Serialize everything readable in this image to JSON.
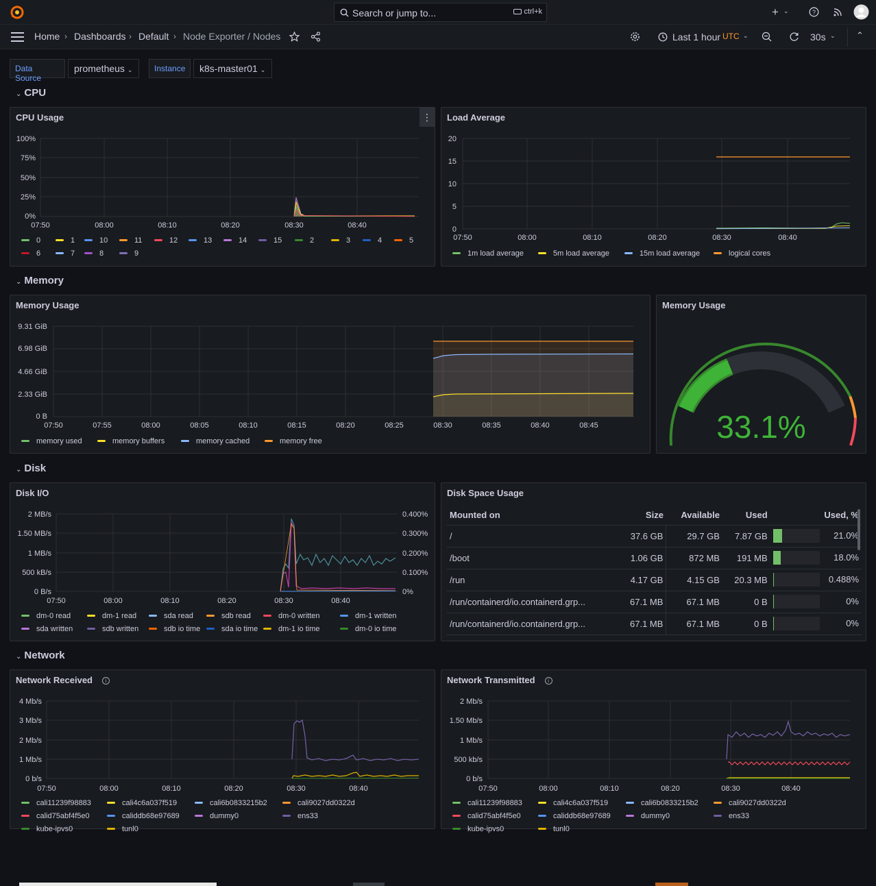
{
  "header": {
    "search_placeholder": "Search or jump to...",
    "search_shortcut": "ctrl+k"
  },
  "breadcrumb": {
    "home": "Home",
    "dashboards": "Dashboards",
    "folder": "Default",
    "current": "Node Exporter / Nodes"
  },
  "toolbar": {
    "time_range": "Last 1 hour",
    "timezone": "UTC",
    "refresh": "30s"
  },
  "variables": {
    "datasource_label": "Data Source",
    "datasource_value": "prometheus",
    "instance_label": "Instance",
    "instance_value": "k8s-master01"
  },
  "rows": {
    "cpu": "CPU",
    "memory": "Memory",
    "disk": "Disk",
    "network": "Network"
  },
  "panels": {
    "cpu_usage": {
      "title": "CPU Usage",
      "y_ticks": [
        "100%",
        "75%",
        "50%",
        "25%",
        "0%"
      ],
      "x_ticks": [
        "07:50",
        "08:00",
        "08:10",
        "08:20",
        "08:30",
        "08:40"
      ],
      "legend": [
        {
          "name": "0",
          "color": "#73bf69"
        },
        {
          "name": "1",
          "color": "#fade2a"
        },
        {
          "name": "10",
          "color": "#5794f2"
        },
        {
          "name": "11",
          "color": "#ff9830"
        },
        {
          "name": "12",
          "color": "#f2495c"
        },
        {
          "name": "13",
          "color": "#5794f2"
        },
        {
          "name": "14",
          "color": "#b877d9"
        },
        {
          "name": "15",
          "color": "#705da0"
        },
        {
          "name": "2",
          "color": "#37872d"
        },
        {
          "name": "3",
          "color": "#e0b400"
        },
        {
          "name": "4",
          "color": "#1f60c4"
        },
        {
          "name": "5",
          "color": "#fa6400"
        },
        {
          "name": "6",
          "color": "#c4162a"
        },
        {
          "name": "7",
          "color": "#8ab8ff"
        },
        {
          "name": "8",
          "color": "#a352cc"
        },
        {
          "name": "9",
          "color": "#806eb7"
        }
      ]
    },
    "load_average": {
      "title": "Load Average",
      "y_ticks": [
        "20",
        "15",
        "10",
        "5",
        "0"
      ],
      "x_ticks": [
        "07:50",
        "08:00",
        "08:10",
        "08:20",
        "08:30",
        "08:40"
      ],
      "legend": [
        {
          "name": "1m load average",
          "color": "#73bf69"
        },
        {
          "name": "5m load average",
          "color": "#fade2a"
        },
        {
          "name": "15m load average",
          "color": "#8ab8ff"
        },
        {
          "name": "logical cores",
          "color": "#ff9830"
        }
      ]
    },
    "memory_usage": {
      "title": "Memory Usage",
      "y_ticks": [
        "9.31 GiB",
        "6.98 GiB",
        "4.66 GiB",
        "2.33 GiB",
        "0 B"
      ],
      "x_ticks": [
        "07:50",
        "07:55",
        "08:00",
        "08:05",
        "08:10",
        "08:15",
        "08:20",
        "08:25",
        "08:30",
        "08:35",
        "08:40",
        "08:45"
      ],
      "legend": [
        {
          "name": "memory used",
          "color": "#73bf69"
        },
        {
          "name": "memory buffers",
          "color": "#fade2a"
        },
        {
          "name": "memory cached",
          "color": "#8ab8ff"
        },
        {
          "name": "memory free",
          "color": "#ff9830"
        }
      ]
    },
    "memory_gauge": {
      "title": "Memory Usage",
      "value": "33.1%",
      "fraction": 0.331
    },
    "disk_io": {
      "title": "Disk I/O",
      "y_ticks": [
        "2 MB/s",
        "1.50 MB/s",
        "1 MB/s",
        "500 kB/s",
        "0 B/s"
      ],
      "y2_ticks": [
        "0.400%",
        "0.300%",
        "0.200%",
        "0.100%",
        "0%"
      ],
      "x_ticks": [
        "07:50",
        "08:00",
        "08:10",
        "08:20",
        "08:30",
        "08:40"
      ],
      "legend": [
        {
          "name": "dm-0 read",
          "color": "#73bf69"
        },
        {
          "name": "dm-1 read",
          "color": "#fade2a"
        },
        {
          "name": "sda read",
          "color": "#8ab8ff"
        },
        {
          "name": "sdb read",
          "color": "#ff9830"
        },
        {
          "name": "dm-0 written",
          "color": "#f2495c"
        },
        {
          "name": "dm-1 written",
          "color": "#5794f2"
        },
        {
          "name": "sda written",
          "color": "#b877d9"
        },
        {
          "name": "sdb written",
          "color": "#705da0"
        },
        {
          "name": "sdb io time",
          "color": "#fa6400"
        },
        {
          "name": "sda io time",
          "color": "#1f60c4"
        },
        {
          "name": "dm-1 io time",
          "color": "#e0b400"
        },
        {
          "name": "dm-0 io time",
          "color": "#37872d"
        }
      ]
    },
    "disk_space": {
      "title": "Disk Space Usage",
      "columns": [
        "Mounted on",
        "Size",
        "Available",
        "Used",
        "Used, %"
      ],
      "rows": [
        {
          "mount": "/",
          "size": "37.6 GB",
          "available": "29.7 GB",
          "used": "7.87 GB",
          "pct": "21.0%",
          "frac": 0.21
        },
        {
          "mount": "/boot",
          "size": "1.06 GB",
          "available": "872 MB",
          "used": "191 MB",
          "pct": "18.0%",
          "frac": 0.18
        },
        {
          "mount": "/run",
          "size": "4.17 GB",
          "available": "4.15 GB",
          "used": "20.3 MB",
          "pct": "0.488%",
          "frac": 0.00488
        },
        {
          "mount": "/run/containerd/io.containerd.grp...",
          "size": "67.1 MB",
          "available": "67.1 MB",
          "used": "0 B",
          "pct": "0%",
          "frac": 0
        },
        {
          "mount": "/run/containerd/io.containerd.grp...",
          "size": "67.1 MB",
          "available": "67.1 MB",
          "used": "0 B",
          "pct": "0%",
          "frac": 0
        }
      ]
    },
    "net_rx": {
      "title": "Network Received",
      "y_ticks": [
        "4 Mb/s",
        "3 Mb/s",
        "2 Mb/s",
        "1 Mb/s",
        "0 b/s"
      ],
      "x_ticks": [
        "07:50",
        "08:00",
        "08:10",
        "08:20",
        "08:30",
        "08:40"
      ],
      "legend": [
        {
          "name": "cali11239f98883",
          "color": "#73bf69"
        },
        {
          "name": "cali4c6a037f519",
          "color": "#fade2a"
        },
        {
          "name": "cali6b0833215b2",
          "color": "#8ab8ff"
        },
        {
          "name": "cali9027dd0322d",
          "color": "#ff9830"
        },
        {
          "name": "calid75abf4f5e0",
          "color": "#f2495c"
        },
        {
          "name": "caliddb68e97689",
          "color": "#5794f2"
        },
        {
          "name": "dummy0",
          "color": "#b877d9"
        },
        {
          "name": "ens33",
          "color": "#705da0"
        },
        {
          "name": "kube-ipvs0",
          "color": "#37872d"
        },
        {
          "name": "tunl0",
          "color": "#e0b400"
        }
      ]
    },
    "net_tx": {
      "title": "Network Transmitted",
      "y_ticks": [
        "2 Mb/s",
        "1.50 Mb/s",
        "1 Mb/s",
        "500 kb/s",
        "0 b/s"
      ],
      "x_ticks": [
        "07:50",
        "08:00",
        "08:10",
        "08:20",
        "08:30",
        "08:40"
      ],
      "legend": [
        {
          "name": "cali11239f98883",
          "color": "#73bf69"
        },
        {
          "name": "cali4c6a037f519",
          "color": "#fade2a"
        },
        {
          "name": "cali6b0833215b2",
          "color": "#8ab8ff"
        },
        {
          "name": "cali9027dd0322d",
          "color": "#ff9830"
        },
        {
          "name": "calid75abf4f5e0",
          "color": "#f2495c"
        },
        {
          "name": "caliddb68e97689",
          "color": "#5794f2"
        },
        {
          "name": "dummy0",
          "color": "#b877d9"
        },
        {
          "name": "ens33",
          "color": "#705da0"
        },
        {
          "name": "kube-ipvs0",
          "color": "#37872d"
        },
        {
          "name": "tunl0",
          "color": "#e0b400"
        }
      ]
    }
  }
}
